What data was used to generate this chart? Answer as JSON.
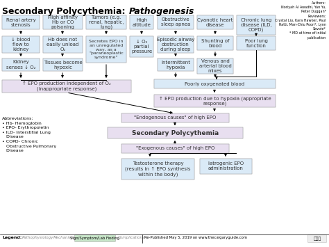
{
  "title_normal": "Secondary Polycythemia: ",
  "title_italic": "Pathogenesis",
  "bg_color": "#ffffff",
  "authors_text": "Authors:\nNoriyah Al Awadhi, Yan Yu,\nPeter Duggan*\nReviewers:\nCrystal Liu, Kara Hawker, Paul\nRatti, Man-Chiu Poon*, Lynn\nSavoie*\n* MD at time of initial\npublication",
  "legend_footer": "Re-Published May 5, 2019 on www.thecalgaryguide.com",
  "box_light_blue": "#daeaf7",
  "box_light_purple": "#e8dff0",
  "abbrev_text": "Abbreviations:\n• Hb- Hemoglobin\n• EPO- Erythropoietin\n• ILD- Interstitial Lung\n   Disease\n• COPD- Chronic\n   Obstructive Pulmonary\n   Disease",
  "green_box_color": "#c8e6c9"
}
